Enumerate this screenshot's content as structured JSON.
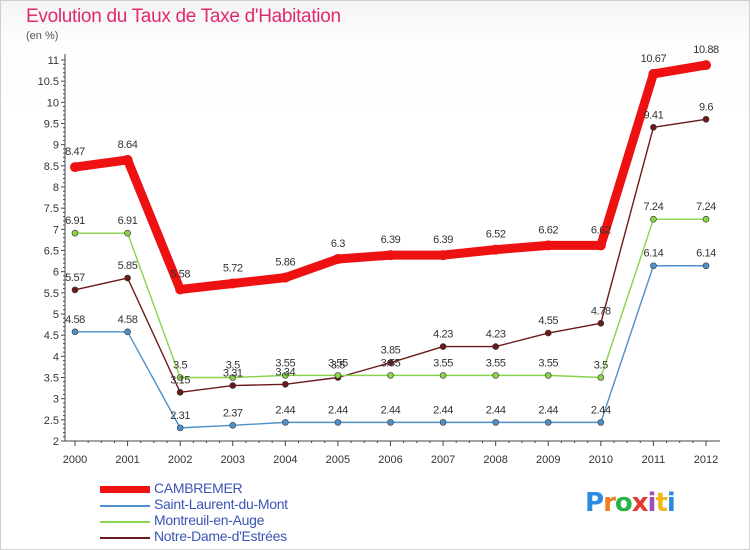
{
  "title": "Evolution du Taux de Taxe d'Habitation",
  "subtitle": "(en %)",
  "chart_data": {
    "type": "line",
    "title": "Evolution du Taux de Taxe d'Habitation",
    "subtitle": "(en %)",
    "xlabel": "",
    "ylabel": "",
    "x": [
      "2000",
      "2001",
      "2002",
      "2003",
      "2004",
      "2005",
      "2006",
      "2007",
      "2008",
      "2009",
      "2010",
      "2011",
      "2012"
    ],
    "ylim": [
      2,
      11
    ],
    "y_ticks": [
      "2",
      "2.5",
      "3",
      "3.5",
      "4",
      "4.5",
      "5",
      "5.5",
      "6",
      "6.5",
      "7",
      "7.5",
      "8",
      "8.5",
      "9",
      "9.5",
      "10",
      "10.5",
      "11"
    ],
    "grid": false,
    "legend_position": "bottom-left",
    "series": [
      {
        "name": "CAMBREMER",
        "color": "#ee1111",
        "thick": true,
        "values": [
          8.47,
          8.64,
          5.58,
          5.72,
          5.86,
          6.3,
          6.39,
          6.39,
          6.52,
          6.62,
          6.62,
          10.67,
          10.88
        ],
        "labels": [
          "8.47",
          "8.64",
          "5.58",
          "5.72",
          "5.86",
          "6.3",
          "6.39",
          "6.39",
          "6.52",
          "6.62",
          "6.62",
          "10.67",
          "10.88"
        ]
      },
      {
        "name": "Saint-Laurent-du-Mont",
        "color": "#4f90c8",
        "thick": false,
        "values": [
          4.58,
          4.58,
          2.31,
          2.37,
          2.44,
          2.44,
          2.44,
          2.44,
          2.44,
          2.44,
          2.44,
          6.14,
          6.14
        ],
        "labels": [
          "4.58",
          "4.58",
          "2.31",
          "2.37",
          "2.44",
          "2.44",
          "2.44",
          "2.44",
          "2.44",
          "2.44",
          "2.44",
          "6.14",
          "6.14"
        ]
      },
      {
        "name": "Montreuil-en-Auge",
        "color": "#88d44a",
        "thick": false,
        "values": [
          6.91,
          6.91,
          3.5,
          3.5,
          3.55,
          3.55,
          3.55,
          3.55,
          3.55,
          3.55,
          3.5,
          7.24,
          7.24
        ],
        "labels": [
          "6.91",
          "6.91",
          "3.5",
          "3.5",
          "3.55",
          "3.55",
          "3.55",
          "3.55",
          "3.55",
          "3.55",
          "3.5",
          "7.24",
          "7.24"
        ]
      },
      {
        "name": "Notre-Dame-d'Estrées",
        "color": "#6b1a1a",
        "thick": false,
        "values": [
          5.57,
          5.85,
          3.15,
          3.31,
          3.34,
          3.5,
          3.85,
          4.23,
          4.23,
          4.55,
          4.78,
          9.41,
          9.6
        ],
        "labels": [
          "5.57",
          "5.85",
          "3.15",
          "3.31",
          "3.34",
          "3.5",
          "3.85",
          "4.23",
          "4.23",
          "4.55",
          "4.78",
          "9.41",
          "9.6"
        ]
      }
    ]
  },
  "logo": {
    "letters": [
      "P",
      "r",
      "o",
      "x",
      "i",
      "t",
      "i"
    ],
    "colors": [
      "#2a8be0",
      "#f07f1c",
      "#2ab34a",
      "#e63a2e",
      "#9a4dbb",
      "#f2b81c",
      "#2a8be0"
    ]
  }
}
